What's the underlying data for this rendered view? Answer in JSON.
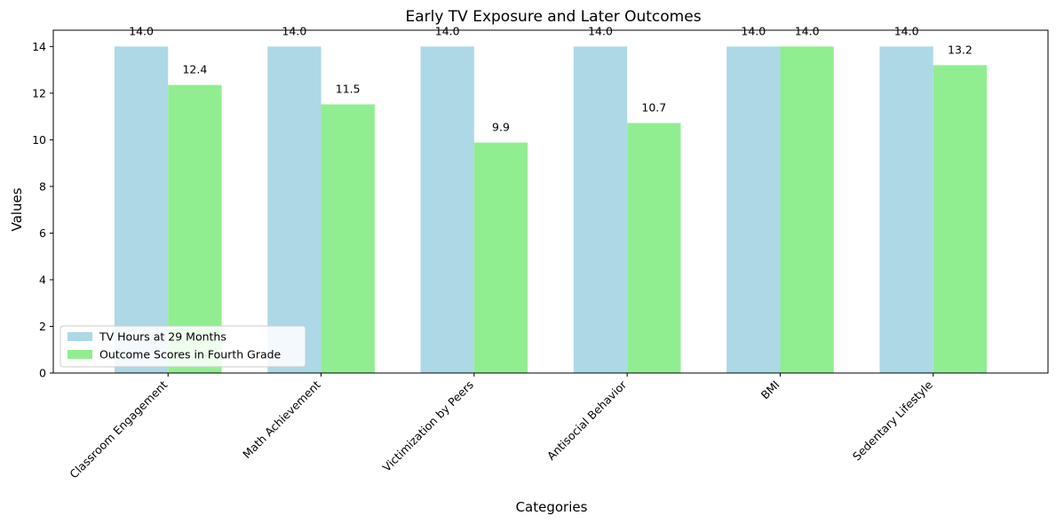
{
  "chart_data": {
    "type": "bar",
    "title": "Early TV Exposure and Later Outcomes",
    "xlabel": "Categories",
    "ylabel": "Values",
    "categories": [
      "Classroom Engagement",
      "Math Achievement",
      "Victimization by Peers",
      "Antisocial Behavior",
      "BMI",
      "Sedentary Lifestyle"
    ],
    "series": [
      {
        "name": "TV Hours at 29 Months",
        "values": [
          14.0,
          14.0,
          14.0,
          14.0,
          14.0,
          14.0
        ],
        "labels": [
          "14.0",
          "14.0",
          "14.0",
          "14.0",
          "14.0",
          "14.0"
        ],
        "color": "#add8e6"
      },
      {
        "name": "Outcome Scores in Fourth Grade",
        "values": [
          12.35,
          11.52,
          9.88,
          10.72,
          14.0,
          13.2
        ],
        "labels": [
          "12.4",
          "11.5",
          "9.9",
          "10.7",
          "14.0",
          "13.2"
        ],
        "color": "#90ee90"
      }
    ],
    "ylim": [
      0,
      14.7
    ],
    "yticks": [
      0,
      2,
      4,
      6,
      8,
      10,
      12,
      14
    ],
    "grid": false,
    "legend_position": "lower-left"
  }
}
